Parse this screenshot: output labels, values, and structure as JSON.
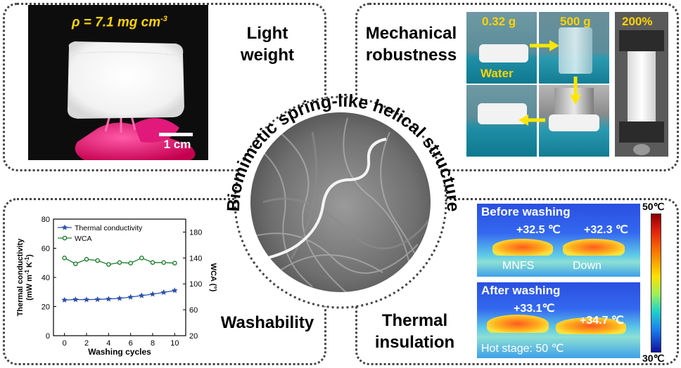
{
  "center": {
    "title": "Biomimetic spring-like helical structure"
  },
  "top_left": {
    "density_label": "ρ = 7.1 mg cm",
    "density_exp": "-3",
    "scale_bar": "1 cm",
    "label_line1": "Light",
    "label_line2": "weight"
  },
  "top_right": {
    "label_line1": "Mechanical",
    "label_line2": "robustness",
    "weight_small": "0.32 g",
    "weight_large": "500 g",
    "water": "Water",
    "strain": "200%"
  },
  "bottom_left": {
    "label": "Washability"
  },
  "bottom_right": {
    "label_line1": "Thermal",
    "label_line2": "insulation",
    "before_title": "Before washing",
    "before_temp_left": "+32.5 ℃",
    "before_temp_right": "+32.3 ℃",
    "mnfs": "MNFS",
    "down": "Down",
    "after_title": "After washing",
    "after_temp_left": "+33.1℃",
    "after_temp_right": "+34.7 ℃",
    "hot_stage": "Hot stage: 50 ℃",
    "scale_max": "50℃",
    "scale_min": "30℃"
  },
  "chart_data": {
    "type": "line",
    "xlabel": "Washing cycles",
    "ylabel_left_line1": "Thermal conductivity",
    "ylabel_left_line2": "(mW m",
    "ylabel_left_exp1": "-1",
    "ylabel_left_mid": " K",
    "ylabel_left_exp2": "-1",
    "ylabel_left_end": ")",
    "ylabel_right": "WCA (°)",
    "x": [
      0,
      1,
      2,
      3,
      4,
      5,
      6,
      7,
      8,
      9,
      10
    ],
    "xticks": [
      "0",
      "2",
      "4",
      "6",
      "8",
      "10"
    ],
    "xtick_values": [
      0,
      2,
      4,
      6,
      8,
      10
    ],
    "xlim": [
      -1,
      11
    ],
    "ylim_left": [
      0,
      80
    ],
    "yticks_left": [
      "0",
      "20",
      "40",
      "60",
      "80"
    ],
    "ytick_left_values": [
      0,
      20,
      40,
      60,
      80
    ],
    "ylim_right": [
      20,
      200
    ],
    "yticks_right": [
      "20",
      "60",
      "100",
      "140",
      "180"
    ],
    "ytick_right_values": [
      20,
      60,
      100,
      140,
      180
    ],
    "series": [
      {
        "name": "Thermal conductivity",
        "axis": "left",
        "color": "#2b4fa8",
        "marker": "star",
        "values": [
          24.5,
          24.8,
          24.7,
          24.9,
          25.2,
          25.6,
          26.5,
          27.5,
          28.5,
          29.7,
          31.0
        ]
      },
      {
        "name": "WCA",
        "axis": "right",
        "color": "#1e7d2e",
        "marker": "circle",
        "values": [
          140,
          131,
          138,
          136,
          130,
          133,
          132,
          140,
          133,
          133,
          132
        ]
      }
    ],
    "legend_position": "top-left"
  }
}
